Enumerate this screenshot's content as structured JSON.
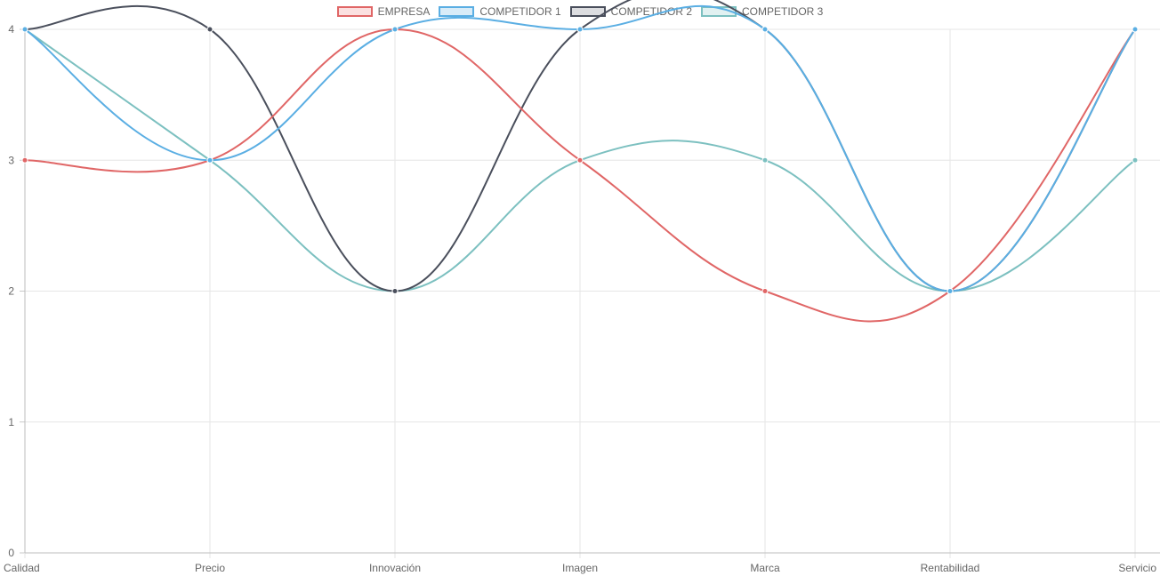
{
  "chart_data": {
    "type": "line",
    "categories": [
      "Calidad",
      "Precio",
      "Innovación",
      "Imagen",
      "Marca",
      "Rentabilidad",
      "Servicio"
    ],
    "ylim": [
      0,
      4
    ],
    "yticks": [
      "0",
      "1",
      "2",
      "3",
      "4"
    ],
    "grid": true,
    "legend_position": "top-center",
    "series": [
      {
        "name": "EMPRESA",
        "values": [
          3,
          3,
          4,
          3,
          2,
          2,
          4
        ],
        "color": "#e06666",
        "fill": "#fbe0e0"
      },
      {
        "name": "COMPETIDOR 1",
        "values": [
          4,
          3,
          4,
          4,
          4,
          2,
          4
        ],
        "color": "#5aaee3",
        "fill": "#d9ecf8"
      },
      {
        "name": "COMPETIDOR 2",
        "values": [
          4,
          4,
          2,
          4,
          4,
          2,
          4
        ],
        "color": "#4a4f5c",
        "fill": "#dcdde0"
      },
      {
        "name": "COMPETIDOR 3",
        "values": [
          4,
          3,
          2,
          3,
          3,
          2,
          3
        ],
        "color": "#7cc0c0",
        "fill": "#e1f1f1"
      }
    ]
  }
}
